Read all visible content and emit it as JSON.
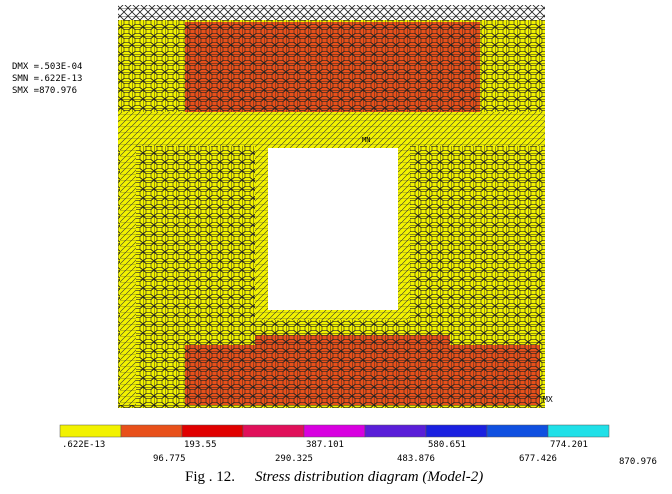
{
  "stats": [
    "DMX =.503E-04",
    "SMN =.622E-13",
    "SMX =870.976"
  ],
  "markers": {
    "min": "MN",
    "max": "MX"
  },
  "legend": {
    "labels": [
      ".622E-13",
      "96.775",
      "193.55",
      "290.325",
      "387.101",
      "483.876",
      "580.651",
      "677.426",
      "774.201",
      "870.976"
    ],
    "colors": [
      "#f2f200",
      "#e8501a",
      "#e00000",
      "#e0105a",
      "#d800e0",
      "#5a1ed8",
      "#1a20e0",
      "#1050e0",
      "#20e0e8"
    ]
  },
  "caption": {
    "number": "Fig . 12.",
    "text": "Stress distribution diagram (Model-2)"
  }
}
